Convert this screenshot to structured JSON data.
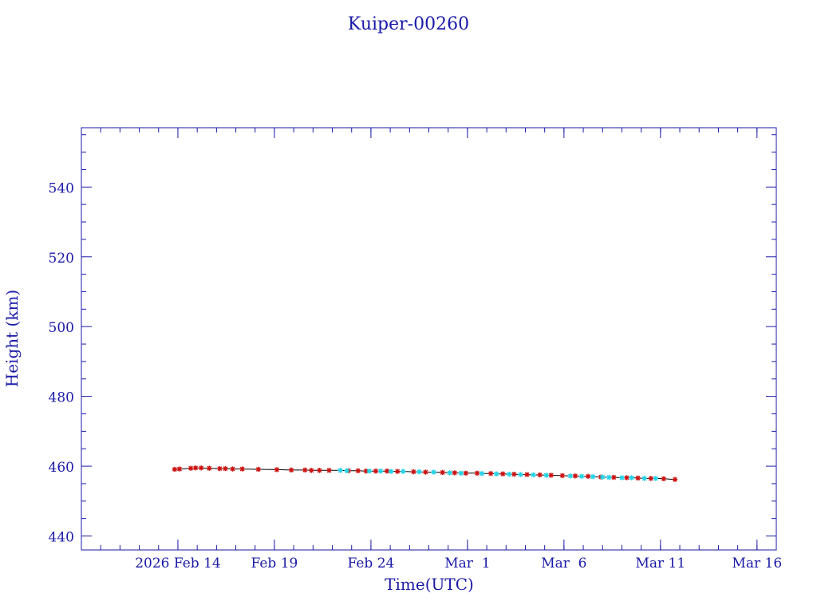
{
  "chart_data": {
    "type": "scatter",
    "title": "Kuiper-00260",
    "xlabel": "Time(UTC)",
    "ylabel": "Height (km)",
    "xlim": [
      "2026-02-09",
      "2026-03-17"
    ],
    "ylim": [
      436,
      557
    ],
    "x_ticks": [
      {
        "label": "2026 Feb 14",
        "date": "2026-02-14"
      },
      {
        "label": "Feb 19",
        "date": "2026-02-19"
      },
      {
        "label": "Feb 24",
        "date": "2026-02-24"
      },
      {
        "label": "Mar  1",
        "date": "2026-03-01"
      },
      {
        "label": "Mar  6",
        "date": "2026-03-06"
      },
      {
        "label": "Mar 11",
        "date": "2026-03-11"
      },
      {
        "label": "Mar 16",
        "date": "2026-03-16"
      }
    ],
    "y_ticks": [
      440,
      460,
      480,
      500,
      520,
      540
    ],
    "grid": false,
    "colors": {
      "axis": "#1a1aa8",
      "line": "#000000",
      "marker_red": "#cc1111",
      "marker_cyan": "#22d3e6"
    },
    "series": [
      {
        "marker": "star",
        "color": "#cc1111",
        "points": [
          [
            "2026-02-13T20:00",
            459.1
          ],
          [
            "2026-02-14T02:00",
            459.2
          ],
          [
            "2026-02-14T16:00",
            459.4
          ],
          [
            "2026-02-14T22:00",
            459.5
          ],
          [
            "2026-02-15T05:00",
            459.5
          ],
          [
            "2026-02-15T15:00",
            459.4
          ],
          [
            "2026-02-16T04:00",
            459.3
          ],
          [
            "2026-02-16T11:00",
            459.3
          ],
          [
            "2026-02-16T20:00",
            459.2
          ],
          [
            "2026-02-17T08:00",
            459.2
          ],
          [
            "2026-02-18T04:00",
            459.1
          ],
          [
            "2026-02-19T03:00",
            459.0
          ],
          [
            "2026-02-19T21:00",
            458.9
          ],
          [
            "2026-02-20T14:00",
            458.9
          ],
          [
            "2026-02-20T22:00",
            458.8
          ],
          [
            "2026-02-21T08:00",
            458.8
          ],
          [
            "2026-02-21T20:00",
            458.8
          ],
          [
            "2026-02-22T20:00",
            458.7
          ],
          [
            "2026-02-23T08:00",
            458.7
          ],
          [
            "2026-02-23T18:00",
            458.6
          ],
          [
            "2026-02-24T06:00",
            458.6
          ],
          [
            "2026-02-24T20:00",
            458.6
          ],
          [
            "2026-02-25T09:00",
            458.5
          ],
          [
            "2026-02-26T05:00",
            458.4
          ],
          [
            "2026-02-26T20:00",
            458.3
          ],
          [
            "2026-02-27T17:00",
            458.2
          ],
          [
            "2026-02-28T08:00",
            458.1
          ],
          [
            "2026-02-28T22:00",
            458.0
          ],
          [
            "2026-03-01T12:00",
            458.0
          ],
          [
            "2026-03-02T05:00",
            457.9
          ],
          [
            "2026-03-02T20:00",
            457.8
          ],
          [
            "2026-03-03T10:00",
            457.7
          ],
          [
            "2026-03-04T02:00",
            457.6
          ],
          [
            "2026-03-04T18:00",
            457.5
          ],
          [
            "2026-03-05T08:00",
            457.4
          ],
          [
            "2026-03-05T22:00",
            457.3
          ],
          [
            "2026-03-06T14:00",
            457.2
          ],
          [
            "2026-03-07T06:00",
            457.1
          ],
          [
            "2026-03-07T22:00",
            456.9
          ],
          [
            "2026-03-08T14:00",
            456.8
          ],
          [
            "2026-03-09T06:00",
            456.7
          ],
          [
            "2026-03-09T20:00",
            456.6
          ],
          [
            "2026-03-10T12:00",
            456.5
          ],
          [
            "2026-03-11T04:00",
            456.4
          ],
          [
            "2026-03-11T18:00",
            456.2
          ]
        ]
      },
      {
        "marker": "star",
        "color": "#22d3e6",
        "points": [
          [
            "2026-02-22T10:00",
            458.8
          ],
          [
            "2026-02-22T18:00",
            458.7
          ],
          [
            "2026-02-23T22:00",
            458.6
          ],
          [
            "2026-02-24T12:00",
            458.6
          ],
          [
            "2026-02-25T01:00",
            458.5
          ],
          [
            "2026-02-25T16:00",
            458.5
          ],
          [
            "2026-02-26T12:00",
            458.4
          ],
          [
            "2026-02-27T06:00",
            458.3
          ],
          [
            "2026-02-28T02:00",
            458.1
          ],
          [
            "2026-02-28T16:00",
            458.0
          ],
          [
            "2026-03-01T18:00",
            457.9
          ],
          [
            "2026-03-02T12:00",
            457.8
          ],
          [
            "2026-03-03T04:00",
            457.7
          ],
          [
            "2026-03-03T18:00",
            457.6
          ],
          [
            "2026-03-04T10:00",
            457.5
          ],
          [
            "2026-03-05T02:00",
            457.4
          ],
          [
            "2026-03-06T08:00",
            457.2
          ],
          [
            "2026-03-06T22:00",
            457.1
          ],
          [
            "2026-03-07T12:00",
            457.0
          ],
          [
            "2026-03-08T00:00",
            456.9
          ],
          [
            "2026-03-08T08:00",
            456.8
          ],
          [
            "2026-03-09T00:00",
            456.7
          ],
          [
            "2026-03-09T12:00",
            456.7
          ],
          [
            "2026-03-10T04:00",
            456.5
          ],
          [
            "2026-03-10T18:00",
            456.5
          ]
        ]
      }
    ]
  }
}
